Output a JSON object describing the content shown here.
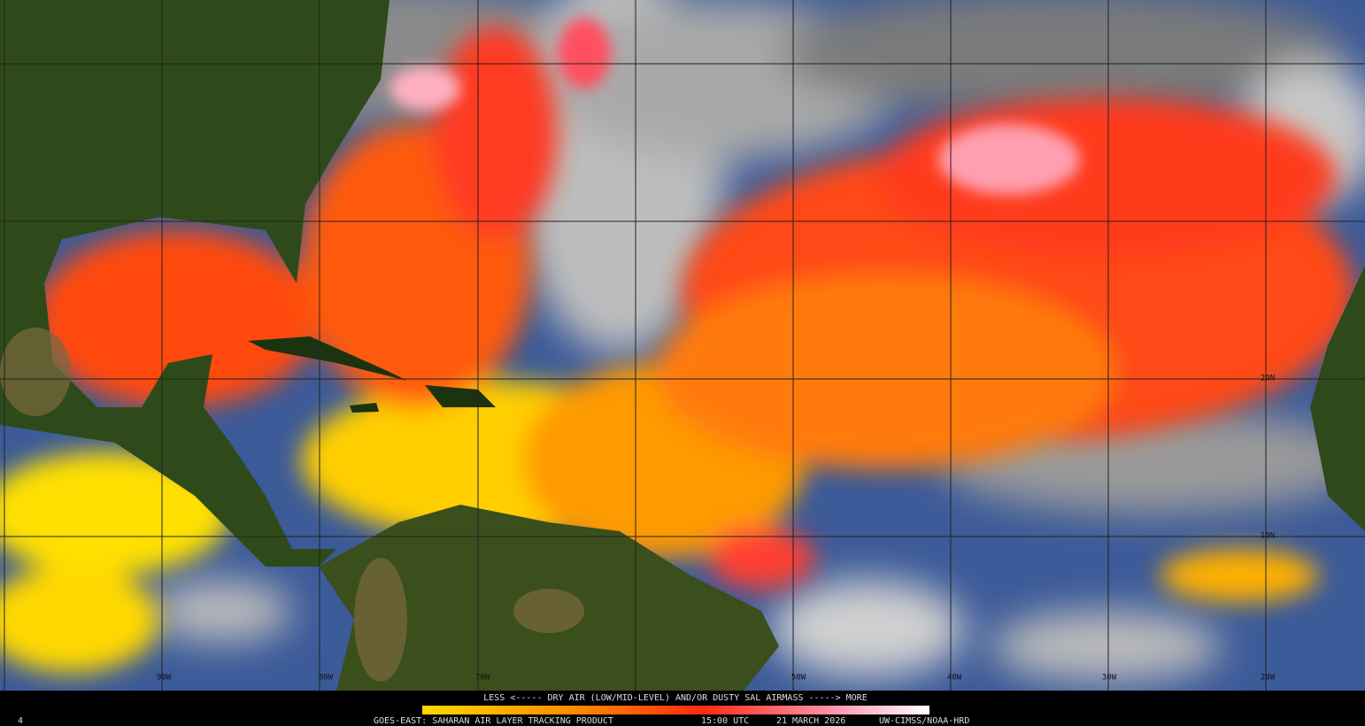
{
  "map": {
    "lon_labels": [
      "90W",
      "80W",
      "70W",
      "50W",
      "40W",
      "30W",
      "20W"
    ],
    "lat_labels": [
      "20N",
      "10N"
    ],
    "legend": "LESS <----- DRY AIR (LOW/MID-LEVEL) AND/OR DUSTY SAL AIRMASS -----> MORE",
    "footer": {
      "product": "GOES-EAST: SAHARAN AIR LAYER TRACKING PRODUCT",
      "time": "15:00 UTC",
      "date": "21 MARCH 2026",
      "credit": "UW-CIMSS/NOAA-HRD"
    },
    "frame": "4"
  }
}
